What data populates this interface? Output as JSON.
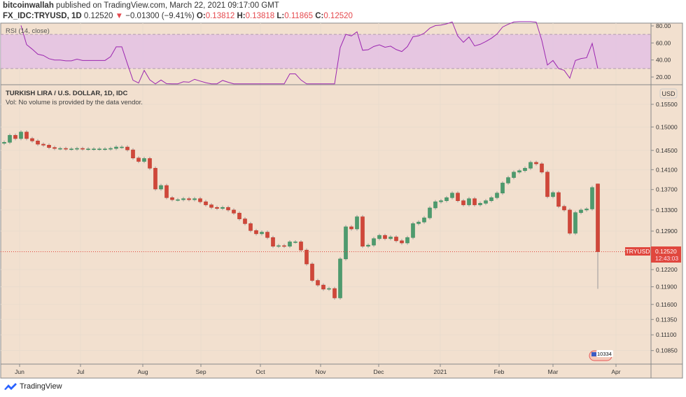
{
  "header": {
    "author": "bitcoinwallah",
    "published": "published on TradingView.com, March 22, 2021 09:17:00 GMT",
    "symbol": "FX_IDC:TRYUSD, 1D",
    "last": "0.12520",
    "change": "−0.01300 (−9.41%)",
    "o_label": "O:",
    "o": "0.13812",
    "h_label": "H:",
    "h": "0.13818",
    "l_label": "L:",
    "l": "0.11865",
    "c_label": "C:",
    "c": "0.12520",
    "down_icon": "triangle-down-icon"
  },
  "rsi_pane": {
    "title": "RSI (14, close)",
    "ticks": [
      "80.00",
      "60.00",
      "40.00",
      "20.00"
    ],
    "tick_values": [
      80,
      60,
      40,
      20
    ],
    "band": [
      30,
      70
    ],
    "line_color": "#9c27b0",
    "band_color": "#e1bee7"
  },
  "price_pane": {
    "title": "TURKISH LIRA / U.S. DOLLAR, 1D, IDC",
    "volume_note": "Vol: No volume is provided by the data vendor.",
    "currency": "USD",
    "price_tag_symbol": "TRYUSD",
    "price_tag_value": "0.12520",
    "price_tag_countdown": "12:43:03",
    "event_badge": "10334"
  },
  "chart_data": {
    "type": "candlestick",
    "scale": "log",
    "ylim": [
      0.1075,
      0.1575
    ],
    "y_ticks": [
      "0.15500",
      "0.15000",
      "0.14500",
      "0.14100",
      "0.13700",
      "0.13300",
      "0.12900",
      "0.12200",
      "0.11900",
      "0.11600",
      "0.11350",
      "0.11100",
      "0.10850"
    ],
    "x_ticks": [
      "Jun",
      "Jul",
      "Aug",
      "Sep",
      "Oct",
      "Nov",
      "Dec",
      "2021",
      "Feb",
      "Mar",
      "Apr"
    ],
    "first_open": 0.1465,
    "closes": [
      0.1467,
      0.1482,
      0.1475,
      0.1489,
      0.1475,
      0.147,
      0.1463,
      0.1461,
      0.1456,
      0.1454,
      0.1454,
      0.1453,
      0.1453,
      0.1454,
      0.1453,
      0.1453,
      0.1453,
      0.1453,
      0.1453,
      0.1454,
      0.1457,
      0.1457,
      0.1451,
      0.1434,
      0.1427,
      0.1433,
      0.1413,
      0.1371,
      0.1378,
      0.1354,
      0.135,
      0.135,
      0.1352,
      0.135,
      0.1352,
      0.1346,
      0.134,
      0.1335,
      0.1333,
      0.1335,
      0.133,
      0.1324,
      0.1313,
      0.1304,
      0.1291,
      0.1285,
      0.1288,
      0.1278,
      0.1262,
      0.1263,
      0.1262,
      0.127,
      0.127,
      0.1255,
      0.123,
      0.1201,
      0.1193,
      0.1186,
      0.1187,
      0.1171,
      0.1239,
      0.1298,
      0.1294,
      0.1317,
      0.1262,
      0.1264,
      0.1276,
      0.1282,
      0.1276,
      0.1279,
      0.1272,
      0.1268,
      0.1278,
      0.1304,
      0.1307,
      0.1315,
      0.1334,
      0.1346,
      0.1348,
      0.1354,
      0.1363,
      0.1348,
      0.134,
      0.1352,
      0.134,
      0.1343,
      0.1348,
      0.1354,
      0.1363,
      0.1383,
      0.1394,
      0.1405,
      0.1408,
      0.1413,
      0.1425,
      0.1422,
      0.1405,
      0.1356,
      0.1364,
      0.1337,
      0.133,
      0.1286,
      0.1325,
      0.133,
      0.1332,
      0.1374
    ],
    "last_candle": {
      "open": 0.13812,
      "high": 0.13818,
      "low": 0.11865,
      "close": 0.1252
    },
    "up_color": "#26a69a",
    "down_color": "#ef5350",
    "grid": true
  },
  "footer": {
    "brand": "TradingView"
  }
}
